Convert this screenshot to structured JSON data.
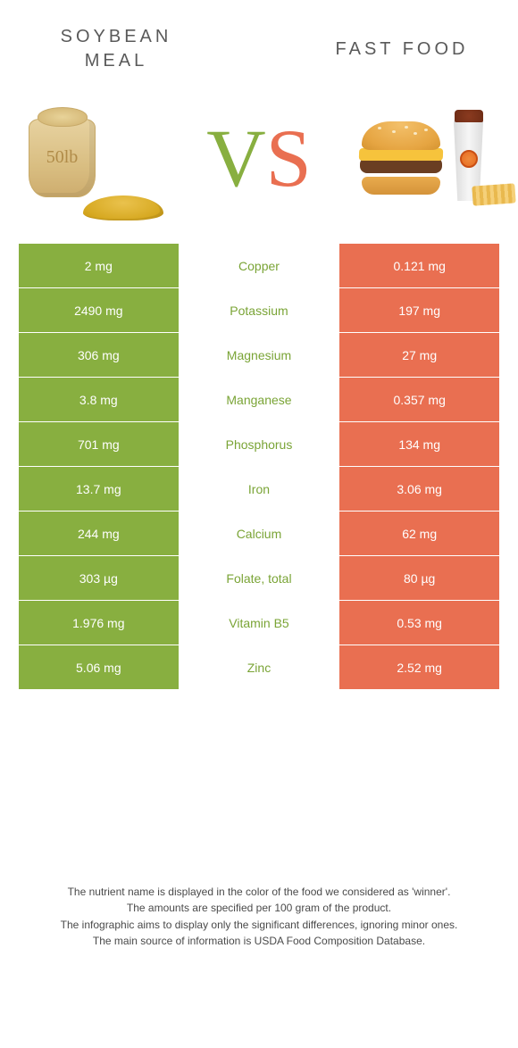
{
  "palette": {
    "left_color": "#88af40",
    "right_color": "#e96f51",
    "left_label_color": "#7aa436",
    "right_label_color": "#db5f43",
    "sack_label_color": "#b08b48",
    "vs_left": "#88af40",
    "vs_right": "#e96f51",
    "title_color": "#5a5a5a",
    "body_text": "#4a4a4a",
    "background": "#ffffff"
  },
  "left": {
    "title": "SOYBEAN\nMEAL",
    "sack_label": "50lb"
  },
  "right": {
    "title": "FAST FOOD"
  },
  "vs_text": {
    "v": "V",
    "s": "S"
  },
  "table": {
    "type": "comparison-table",
    "rows": [
      {
        "left": "2 mg",
        "nutrient": "Copper",
        "right": "0.121 mg",
        "winner": "left"
      },
      {
        "left": "2490 mg",
        "nutrient": "Potassium",
        "right": "197 mg",
        "winner": "left"
      },
      {
        "left": "306 mg",
        "nutrient": "Magnesium",
        "right": "27 mg",
        "winner": "left"
      },
      {
        "left": "3.8 mg",
        "nutrient": "Manganese",
        "right": "0.357 mg",
        "winner": "left"
      },
      {
        "left": "701 mg",
        "nutrient": "Phosphorus",
        "right": "134 mg",
        "winner": "left"
      },
      {
        "left": "13.7 mg",
        "nutrient": "Iron",
        "right": "3.06 mg",
        "winner": "left"
      },
      {
        "left": "244 mg",
        "nutrient": "Calcium",
        "right": "62 mg",
        "winner": "left"
      },
      {
        "left": "303 µg",
        "nutrient": "Folate, total",
        "right": "80 µg",
        "winner": "left"
      },
      {
        "left": "1.976 mg",
        "nutrient": "Vitamin B5",
        "right": "0.53 mg",
        "winner": "left"
      },
      {
        "left": "5.06 mg",
        "nutrient": "Zinc",
        "right": "2.52 mg",
        "winner": "left"
      }
    ]
  },
  "footnotes": [
    "The nutrient name is displayed in the color of the food we considered as 'winner'.",
    "The amounts are specified per 100 gram of the product.",
    "The infographic aims to display only the significant differences, ignoring minor ones.",
    "The main source of information is USDA Food Composition Database."
  ]
}
